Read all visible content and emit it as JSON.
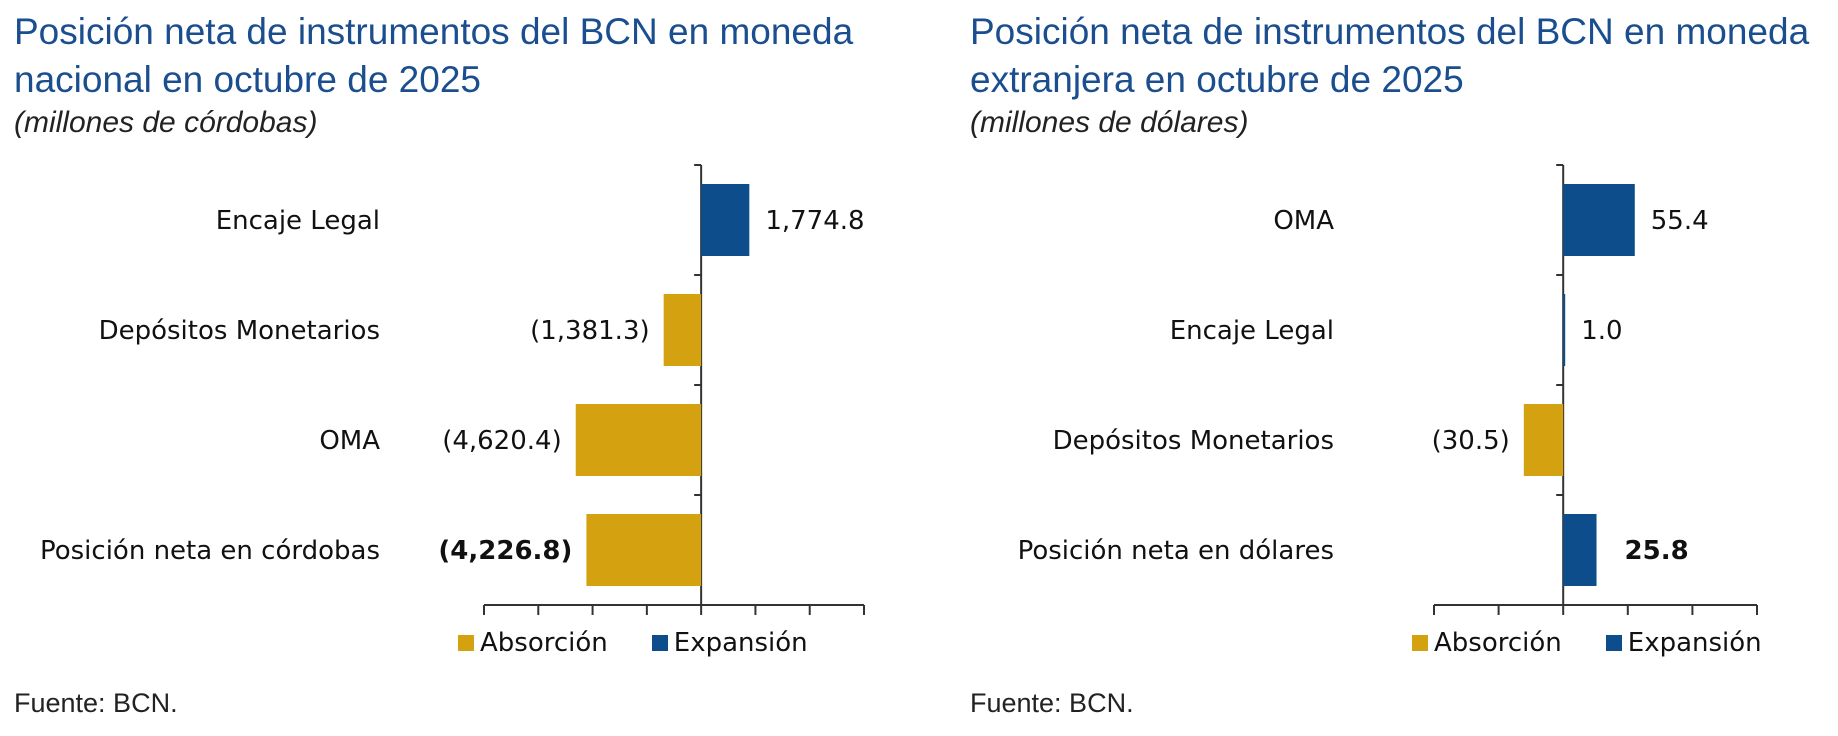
{
  "colors": {
    "absorcion": "#d4a111",
    "expansion": "#0d4d8c",
    "axis": "#333333"
  },
  "legend": {
    "absorcion": "Absorción",
    "expansion": "Expansión"
  },
  "chart_data": [
    {
      "type": "bar",
      "orientation": "horizontal",
      "title": "Posición neta de instrumentos del BCN en moneda nacional en octubre de 2025",
      "title_lines": [
        "Posición neta de instrumentos del BCN en moneda",
        "nacional en octubre de 2025"
      ],
      "subtitle": "(millones de córdobas)",
      "source": "Fuente: BCN.",
      "xlim": [
        -8000,
        6000
      ],
      "x_tick_step": 2000,
      "categories": [
        "Encaje Legal",
        "Depósitos Monetarios",
        "OMA",
        "Posición neta en córdobas"
      ],
      "values": [
        1774.8,
        -1381.3,
        -4620.4,
        -4226.8
      ],
      "labels": [
        "1,774.8",
        "(1,381.3)",
        "(4,620.4)",
        "(4,226.8)"
      ],
      "bold_last": true
    },
    {
      "type": "bar",
      "orientation": "horizontal",
      "title": "Posición neta de instrumentos del BCN en moneda extranjera en octubre de 2025",
      "title_lines": [
        "Posición neta de instrumentos del BCN en moneda",
        "extranjera en octubre de 2025"
      ],
      "subtitle": "(millones de dólares)",
      "source": "Fuente: BCN.",
      "xlim": [
        -100,
        150
      ],
      "x_tick_step": 50,
      "categories": [
        "OMA",
        "Encaje Legal",
        "Depósitos Monetarios",
        "Posición neta en dólares"
      ],
      "values": [
        55.4,
        1.0,
        -30.5,
        25.8
      ],
      "labels": [
        "55.4",
        "1.0",
        "(30.5)",
        "25.8"
      ],
      "bold_last": true
    }
  ]
}
